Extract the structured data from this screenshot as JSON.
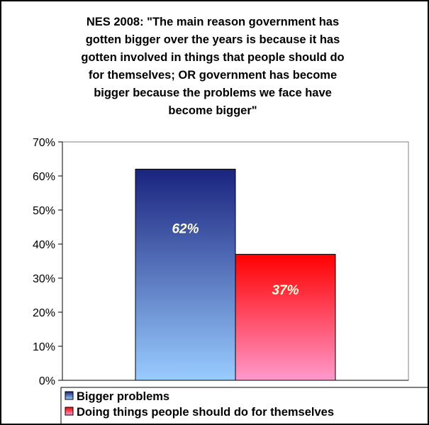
{
  "chart_data": {
    "type": "bar",
    "title_lines": [
      "NES 2008: \"The main reason government has",
      "gotten bigger over the years is because it has",
      "gotten involved in things that people should do",
      "for themselves; OR government has become",
      "bigger because the problems we face have",
      "become bigger\""
    ],
    "categories": [
      ""
    ],
    "series": [
      {
        "name": "Bigger problems",
        "values": [
          62
        ],
        "value_label": "62%",
        "color_top": "#1a237e",
        "color_bottom": "#99ccff"
      },
      {
        "name": "Doing things people should do for themselves",
        "values": [
          37
        ],
        "value_label": "37%",
        "color_top": "#ff0000",
        "color_bottom": "#ff99cc"
      }
    ],
    "y_ticks": [
      "0%",
      "10%",
      "20%",
      "30%",
      "40%",
      "50%",
      "60%",
      "70%"
    ],
    "ylim": [
      0,
      70
    ],
    "ylabel": "",
    "xlabel": "",
    "grid": false,
    "legend_position": "bottom",
    "plot_background": "#ffffff",
    "label_color": "#fffde0"
  }
}
